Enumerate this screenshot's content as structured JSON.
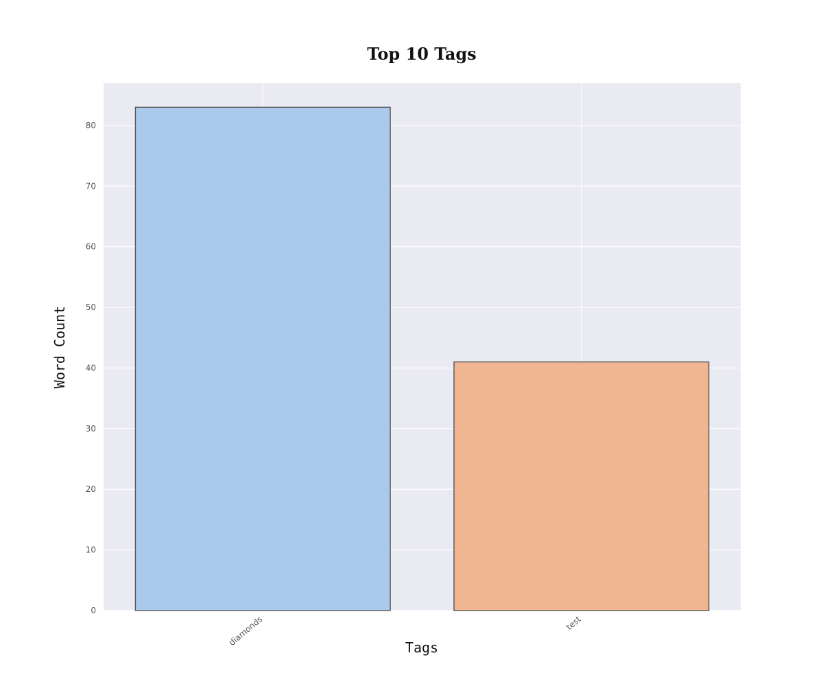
{
  "chart_data": {
    "type": "bar",
    "title": "Top 10 Tags",
    "xlabel": "Tags",
    "ylabel": "Word Count",
    "categories": [
      "diamonds",
      "test"
    ],
    "values": [
      83,
      41
    ],
    "ylim": [
      0,
      87
    ],
    "yticks": [
      0,
      10,
      20,
      30,
      40,
      50,
      60,
      70,
      80
    ],
    "grid": true,
    "colors": {
      "background": "#EAEAF2",
      "grid": "#FFFFFF",
      "bar_edge": "#555555",
      "bars": [
        "#ABC9EB",
        "#F0B692"
      ]
    }
  }
}
